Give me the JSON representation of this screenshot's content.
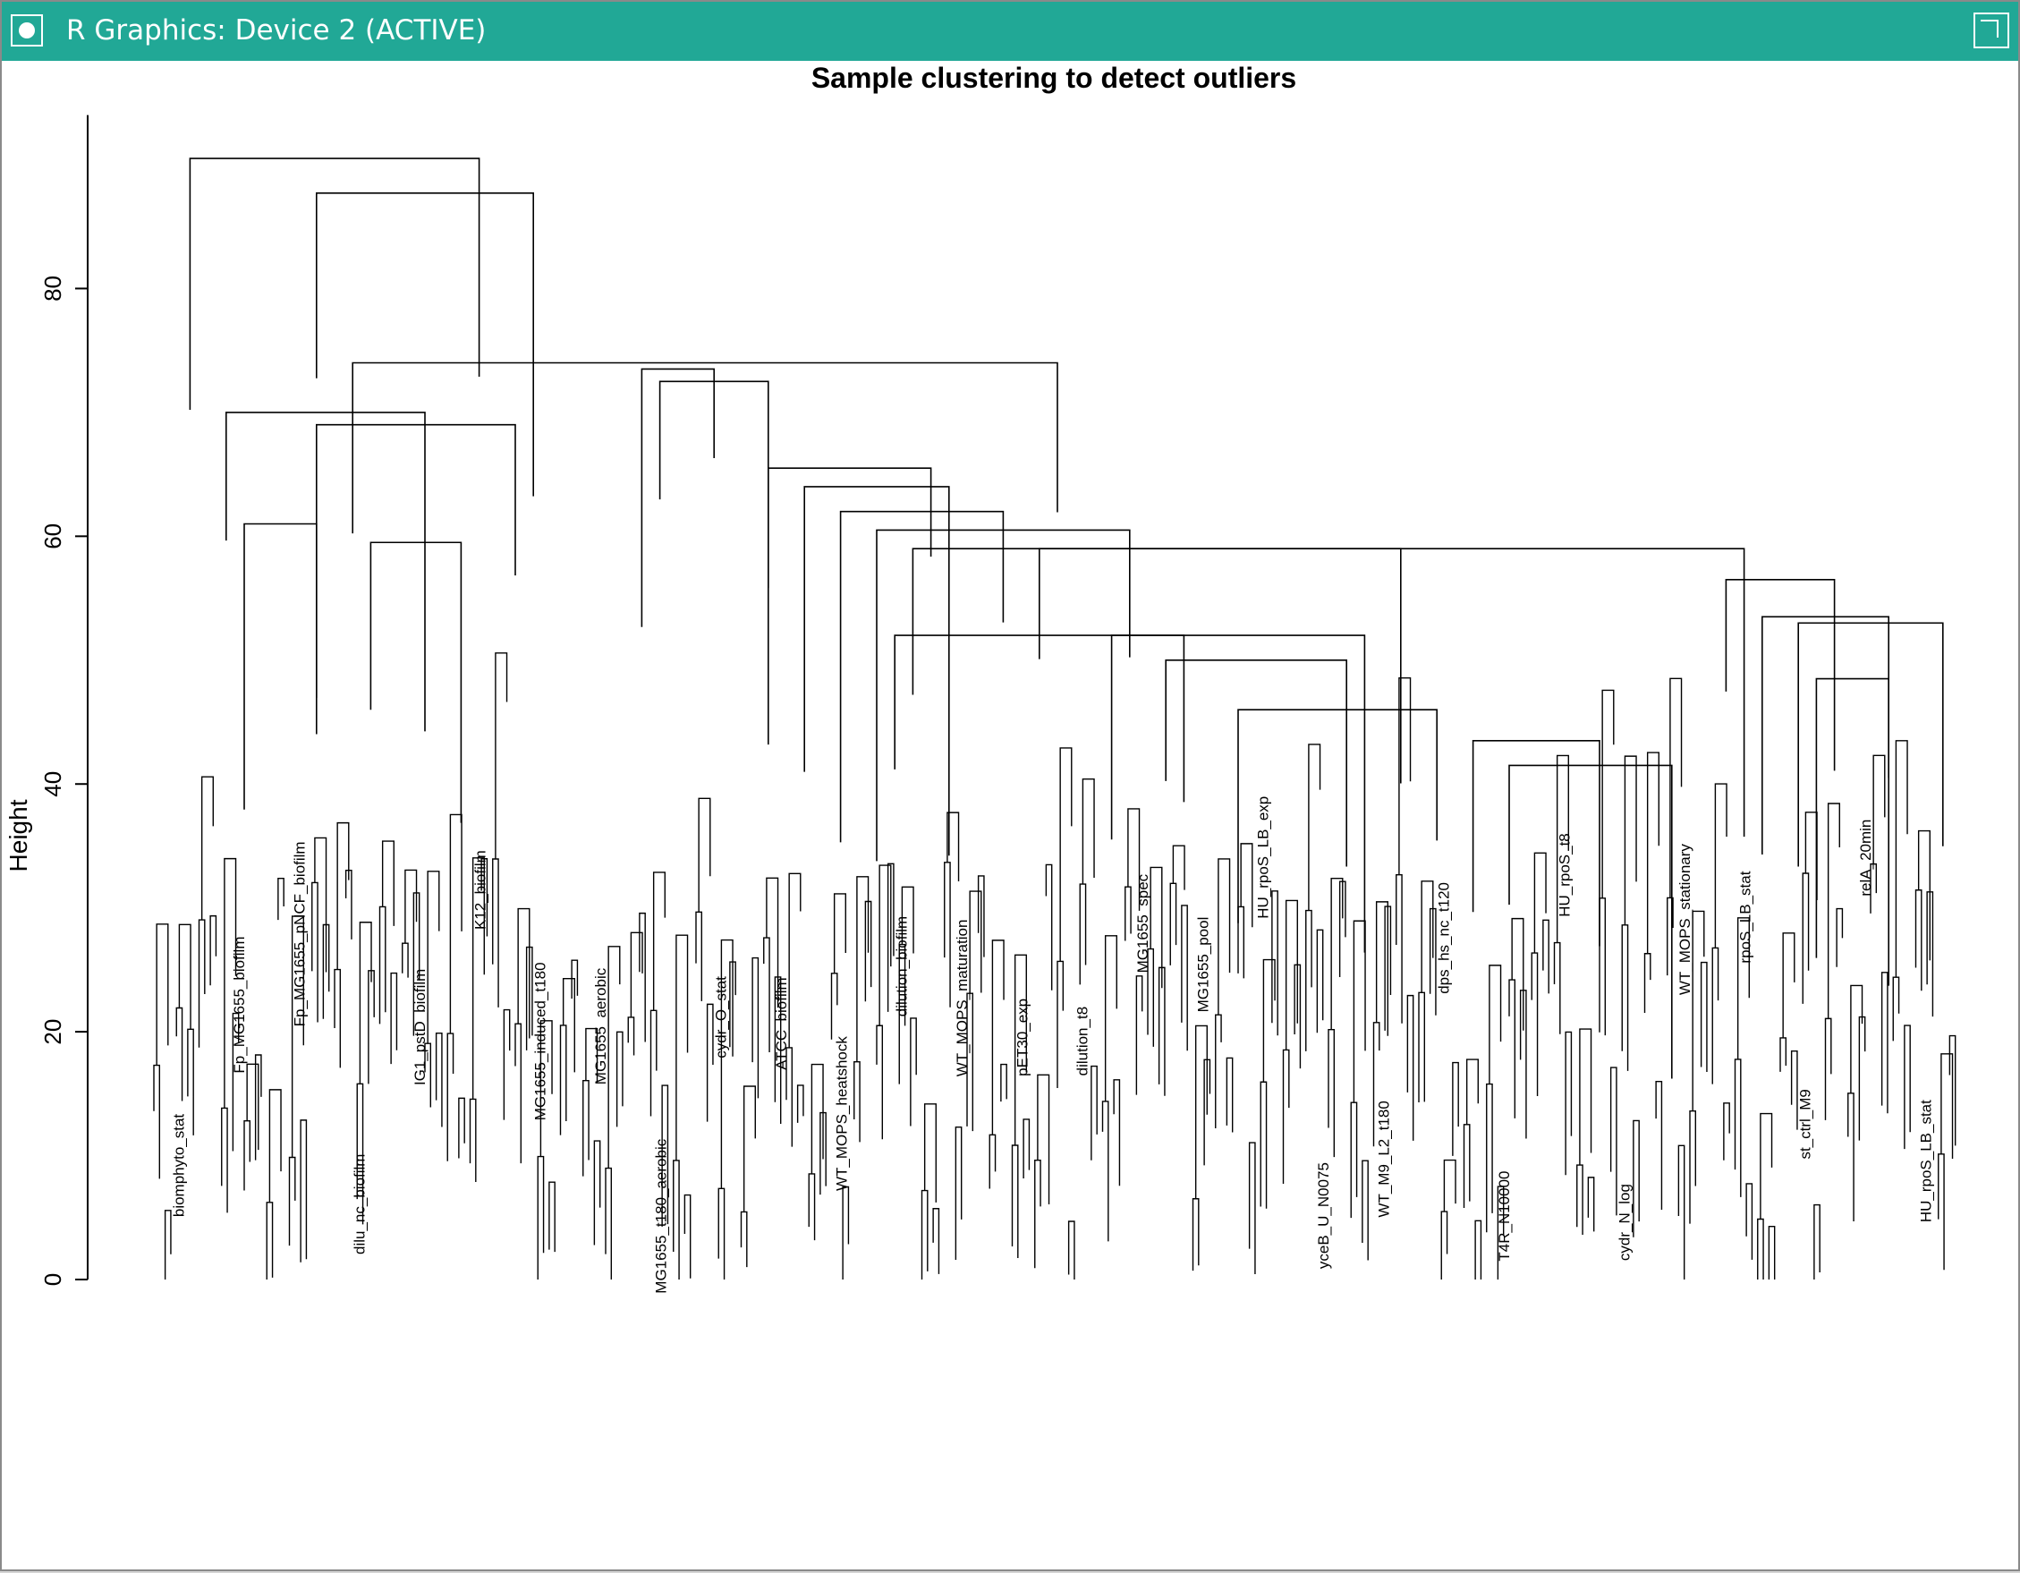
{
  "window": {
    "title": "R Graphics: Device 2 (ACTIVE)",
    "menu_icon": "window-menu-icon",
    "maximize_icon": "maximize-icon"
  },
  "chart_data": {
    "type": "dendrogram",
    "title": "Sample clustering to detect outliers",
    "xlabel": "",
    "ylabel": "Height",
    "ylim": [
      0,
      90
    ],
    "yticks": [
      0,
      20,
      40,
      60,
      80
    ],
    "ytick_labels": [
      "0",
      "20",
      "40",
      "60",
      "80"
    ],
    "legend": "none",
    "grid": false,
    "line_color": "#000000",
    "merges": [
      {
        "x1": 0.02,
        "h1": 0,
        "x2": 0.18,
        "h2": 0,
        "h": 90.5
      },
      {
        "x1": 0.09,
        "h1": 0,
        "x2": 0.21,
        "h2": 0,
        "h": 87.7
      },
      {
        "x1": 0.11,
        "h1": 0,
        "x2": 0.5,
        "h2": 0,
        "h": 74.0
      },
      {
        "x1": 0.04,
        "h1": 0,
        "x2": 0.15,
        "h2": 0,
        "h": 70.0
      },
      {
        "x1": 0.09,
        "h1": 0,
        "x2": 0.2,
        "h2": 0,
        "h": 69.0
      },
      {
        "x1": 0.05,
        "h1": 0,
        "x2": 0.09,
        "h2": 0,
        "h": 61.0
      },
      {
        "x1": 0.12,
        "h1": 0,
        "x2": 0.17,
        "h2": 0,
        "h": 59.5
      },
      {
        "x1": 0.27,
        "h1": 0,
        "x2": 0.31,
        "h2": 0,
        "h": 73.5
      },
      {
        "x1": 0.28,
        "h1": 0,
        "x2": 0.34,
        "h2": 0,
        "h": 72.5
      },
      {
        "x1": 0.34,
        "h1": 0,
        "x2": 0.43,
        "h2": 0,
        "h": 65.5
      },
      {
        "x1": 0.36,
        "h1": 0,
        "x2": 0.44,
        "h2": 0,
        "h": 64.0
      },
      {
        "x1": 0.38,
        "h1": 0,
        "x2": 0.47,
        "h2": 0,
        "h": 62.0
      },
      {
        "x1": 0.4,
        "h1": 0,
        "x2": 0.54,
        "h2": 0,
        "h": 60.5
      },
      {
        "x1": 0.42,
        "h1": 0,
        "x2": 0.69,
        "h2": 0,
        "h": 59.0
      },
      {
        "x1": 0.49,
        "h1": 0,
        "x2": 0.88,
        "h2": 0,
        "h": 59.0
      },
      {
        "x1": 0.41,
        "h1": 0,
        "x2": 0.67,
        "h2": 0,
        "h": 52.0
      },
      {
        "x1": 0.53,
        "h1": 0,
        "x2": 0.57,
        "h2": 0,
        "h": 52.0
      },
      {
        "x1": 0.56,
        "h1": 0,
        "x2": 0.66,
        "h2": 0,
        "h": 50.0
      },
      {
        "x1": 0.6,
        "h1": 0,
        "x2": 0.71,
        "h2": 0,
        "h": 46.0
      },
      {
        "x1": 0.73,
        "h1": 0,
        "x2": 0.8,
        "h2": 0,
        "h": 43.5
      },
      {
        "x1": 0.75,
        "h1": 0,
        "x2": 0.84,
        "h2": 0,
        "h": 41.5
      },
      {
        "x1": 0.87,
        "h1": 0,
        "x2": 0.93,
        "h2": 0,
        "h": 56.5
      },
      {
        "x1": 0.89,
        "h1": 0,
        "x2": 0.96,
        "h2": 0,
        "h": 53.5
      },
      {
        "x1": 0.91,
        "h1": 0,
        "x2": 0.99,
        "h2": 0,
        "h": 53.0
      },
      {
        "x1": 0.92,
        "h1": 0,
        "x2": 0.96,
        "h2": 0,
        "h": 48.5
      }
    ],
    "leaf_labels": [
      "biomphyto_stat",
      "Fp_MG1655_biofilm",
      "Fp_MG1655_pNCF_biofilm",
      "dilu_nc_biofilm",
      "IG1_pstD_biofilm",
      "K12_biofilm",
      "MG1655_induced_t180",
      "MG1655_aerobic",
      "MG1655_t180_aerobic",
      "cydr_O_stat",
      "ATCC_biofilm",
      "WT_MOPS_heatshock",
      "dilution_biofilm",
      "WT_MOPS_maturation",
      "pET30_exp",
      "dilution_t8",
      "MG1655_spec",
      "MG1655_pool",
      "HU_rpoS_LB_exp",
      "yceB_U_N0075",
      "WT_M9_L2_t180",
      "dps_hs_nc_t120",
      "T4R_N10000",
      "HU_rpoS_t8",
      "cydr_N_log",
      "WT_MOPS_stationary",
      "rpoS_LB_stat",
      "st_ctrl_M9",
      "relA_20min",
      "HU_rpoS_LB_stat"
    ]
  }
}
